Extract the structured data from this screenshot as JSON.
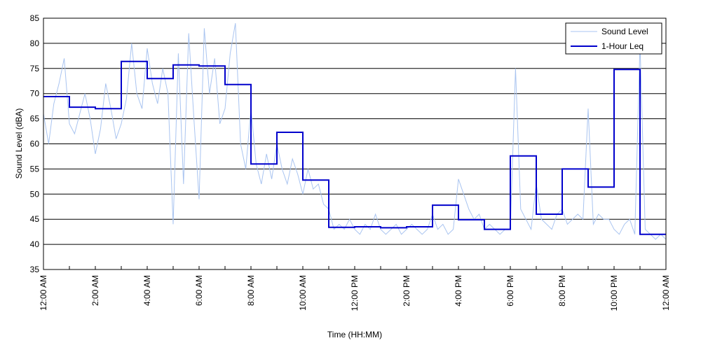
{
  "chart_data": {
    "type": "line",
    "title": "",
    "xlabel": "Time (HH:MM)",
    "ylabel": "Sound Level (dBA)",
    "ylim": [
      35,
      85
    ],
    "xlim_hours": [
      0,
      24
    ],
    "yticks": [
      35,
      40,
      45,
      50,
      55,
      60,
      65,
      70,
      75,
      80,
      85
    ],
    "xticks": [
      {
        "hour": 0,
        "label": "12:00 AM"
      },
      {
        "hour": 2,
        "label": "2:00 AM"
      },
      {
        "hour": 4,
        "label": "4:00 AM"
      },
      {
        "hour": 6,
        "label": "6:00 AM"
      },
      {
        "hour": 8,
        "label": "8:00 AM"
      },
      {
        "hour": 10,
        "label": "10:00 AM"
      },
      {
        "hour": 12,
        "label": "12:00 PM"
      },
      {
        "hour": 14,
        "label": "2:00 PM"
      },
      {
        "hour": 16,
        "label": "4:00 PM"
      },
      {
        "hour": 18,
        "label": "6:00 PM"
      },
      {
        "hour": 20,
        "label": "8:00 PM"
      },
      {
        "hour": 22,
        "label": "10:00 PM"
      },
      {
        "hour": 24,
        "label": "12:00 AM"
      }
    ],
    "grid": "horizontal",
    "legend_position": "top-right",
    "series": [
      {
        "name": "Sound Level",
        "color": "#a9c4f0",
        "x": [
          0,
          0.2,
          0.4,
          0.6,
          0.8,
          1.0,
          1.2,
          1.4,
          1.6,
          1.8,
          2.0,
          2.2,
          2.4,
          2.6,
          2.8,
          3.0,
          3.2,
          3.4,
          3.6,
          3.8,
          4.0,
          4.2,
          4.4,
          4.6,
          4.8,
          5.0,
          5.2,
          5.4,
          5.6,
          5.8,
          6.0,
          6.2,
          6.4,
          6.6,
          6.8,
          7.0,
          7.2,
          7.4,
          7.6,
          7.8,
          8.0,
          8.2,
          8.4,
          8.6,
          8.8,
          9.0,
          9.2,
          9.4,
          9.6,
          9.8,
          10.0,
          10.2,
          10.4,
          10.6,
          10.8,
          11.0,
          11.2,
          11.4,
          11.6,
          11.8,
          12.0,
          12.2,
          12.4,
          12.6,
          12.8,
          13.0,
          13.2,
          13.4,
          13.6,
          13.8,
          14.0,
          14.2,
          14.4,
          14.6,
          14.8,
          15.0,
          15.2,
          15.4,
          15.6,
          15.8,
          16.0,
          16.2,
          16.4,
          16.6,
          16.8,
          17.0,
          17.2,
          17.4,
          17.6,
          17.8,
          18.0,
          18.2,
          18.4,
          18.6,
          18.8,
          19.0,
          19.2,
          19.4,
          19.6,
          19.8,
          20.0,
          20.2,
          20.4,
          20.6,
          20.8,
          21.0,
          21.2,
          21.4,
          21.6,
          21.8,
          22.0,
          22.2,
          22.4,
          22.6,
          22.8,
          23.0,
          23.2,
          23.4,
          23.6,
          23.8,
          24.0
        ],
        "y": [
          66,
          60,
          68,
          72,
          77,
          64,
          62,
          66,
          70,
          65,
          58,
          63,
          72,
          67,
          61,
          64,
          69,
          80,
          70,
          67,
          79,
          72,
          68,
          75,
          70,
          44,
          78,
          52,
          82,
          65,
          49,
          83,
          70,
          77,
          64,
          67,
          78,
          84,
          60,
          55,
          67,
          56,
          52,
          58,
          53,
          60,
          55,
          52,
          57,
          54,
          50,
          55,
          51,
          52,
          48,
          47,
          43,
          44,
          43,
          45,
          43,
          42,
          44,
          43,
          46,
          43,
          42,
          43,
          44,
          42,
          43,
          44,
          43,
          42,
          43,
          46,
          43,
          44,
          42,
          43,
          53,
          50,
          47,
          45,
          46,
          43,
          44,
          43,
          42,
          43,
          43,
          75,
          47,
          45,
          43,
          52,
          45,
          44,
          43,
          46,
          47,
          44,
          45,
          46,
          45,
          67,
          44,
          46,
          45,
          45,
          43,
          42,
          44,
          45,
          42,
          80,
          43,
          42,
          41,
          42,
          41
        ]
      },
      {
        "name": "1-Hour Leq",
        "color": "#0000cc",
        "hourly_leq": [
          69.4,
          67.3,
          67.0,
          76.4,
          73.0,
          75.7,
          75.5,
          71.8,
          56.0,
          62.3,
          52.8,
          43.4,
          43.5,
          43.3,
          43.5,
          47.8,
          44.9,
          43.0,
          57.6,
          46.0,
          55.0,
          51.4,
          74.8,
          42.0
        ]
      }
    ]
  }
}
